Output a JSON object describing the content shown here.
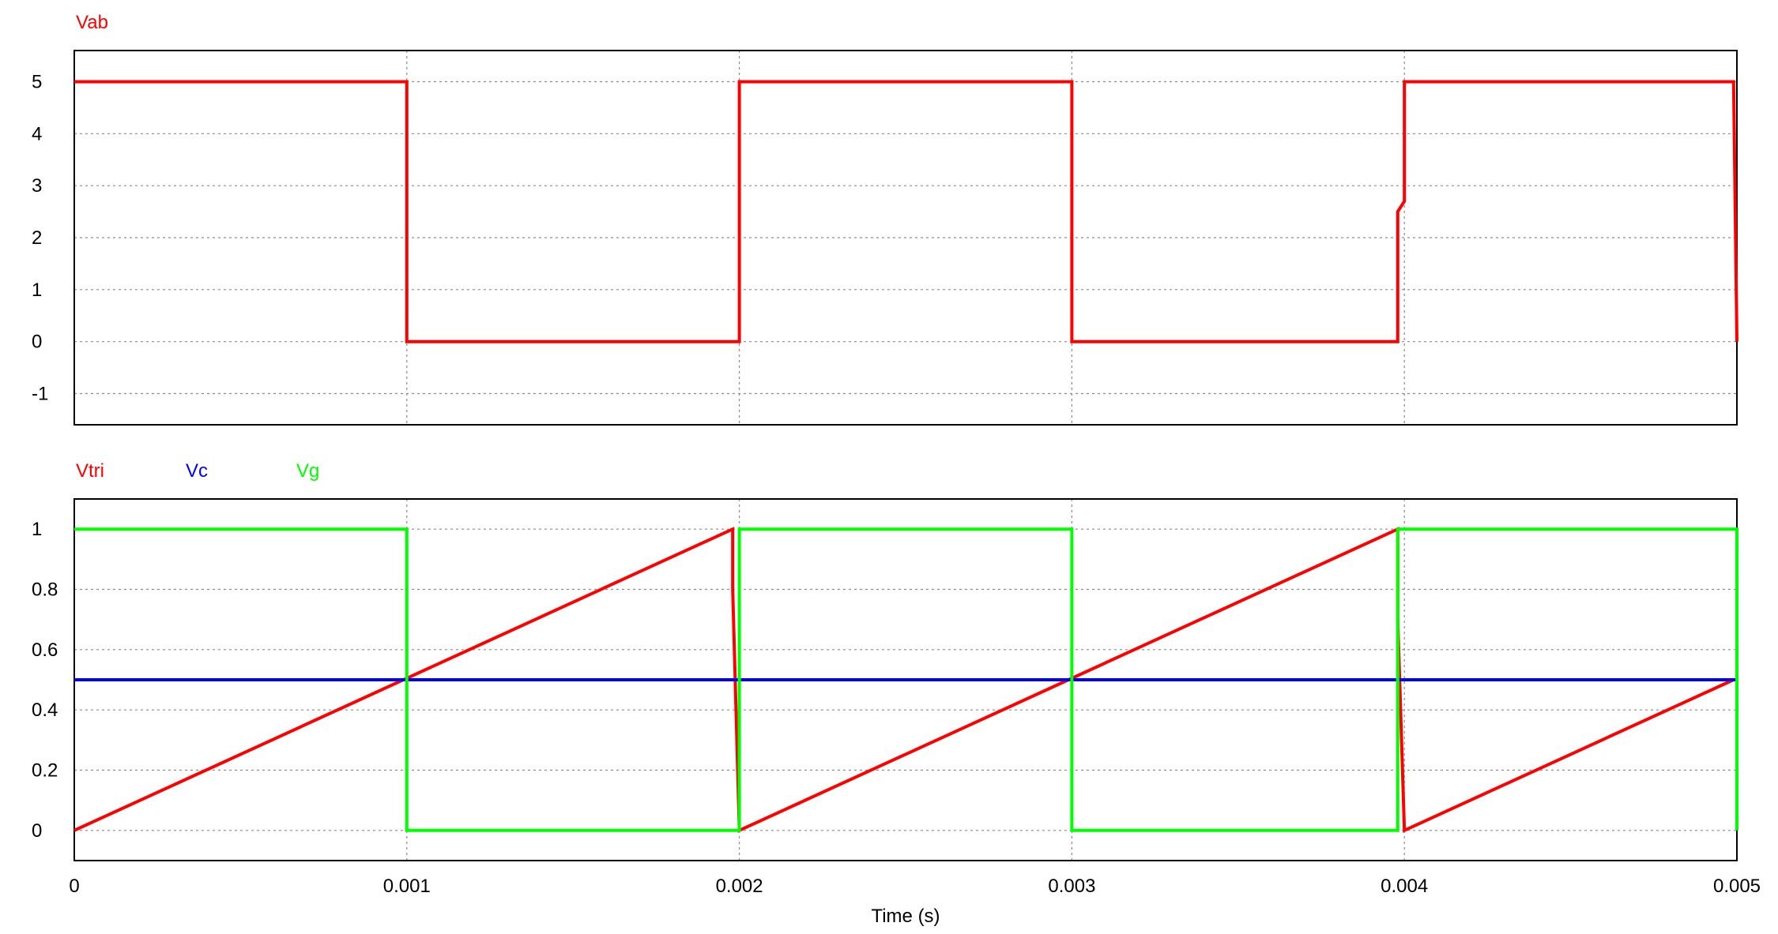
{
  "chart_data": [
    {
      "type": "line",
      "legend": [
        "Vab"
      ],
      "xlim": [
        0,
        0.005
      ],
      "ylim": [
        -1.6,
        5.6
      ],
      "yticks": [
        5,
        4,
        3,
        2,
        1,
        0,
        -1
      ],
      "ytick_labels": [
        "5",
        "4",
        "3",
        "2",
        "1",
        "0",
        "-1"
      ],
      "xticks": [
        0,
        0.001,
        0.002,
        0.003,
        0.004,
        0.005
      ],
      "grid": true,
      "series": [
        {
          "name": "Vab",
          "color": "#ff0000",
          "x": [
            0,
            0.001,
            0.001,
            0.002,
            0.002,
            0.003,
            0.003,
            0.00398,
            0.00398,
            0.004,
            0.004,
            0.00499,
            0.005
          ],
          "y": [
            5,
            5,
            0,
            0,
            5,
            5,
            0,
            0,
            2.5,
            2.7,
            5,
            5,
            0
          ]
        }
      ]
    },
    {
      "type": "line",
      "legend": [
        "Vtri",
        "Vc",
        "Vg"
      ],
      "xlim": [
        0,
        0.005
      ],
      "ylim": [
        -0.1,
        1.1
      ],
      "yticks": [
        1,
        0.8,
        0.6,
        0.4,
        0.2,
        0
      ],
      "ytick_labels": [
        "1",
        "0.8",
        "0.6",
        "0.4",
        "0.2",
        "0"
      ],
      "xticks": [
        0,
        0.001,
        0.002,
        0.003,
        0.004,
        0.005
      ],
      "xtick_labels": [
        "0",
        "0.001",
        "0.002",
        "0.003",
        "0.004",
        "0.005"
      ],
      "xlabel": "Time (s)",
      "grid": true,
      "series": [
        {
          "name": "Vtri",
          "color": "#ff0000",
          "x": [
            0,
            0.00198,
            0.00198,
            0.002,
            0.00299,
            0.00398,
            0.00398,
            0.004,
            0.00499
          ],
          "y": [
            0,
            1,
            0.8,
            0,
            0.5,
            1,
            0.7,
            0,
            0.5
          ]
        },
        {
          "name": "Vc",
          "color": "#0000ff",
          "x": [
            0,
            0.005
          ],
          "y": [
            0.5,
            0.5
          ]
        },
        {
          "name": "Vg",
          "color": "#00ff00",
          "x": [
            0,
            0.001,
            0.001,
            0.002,
            0.002,
            0.003,
            0.003,
            0.00398,
            0.00398,
            0.005,
            0.005
          ],
          "y": [
            1,
            1,
            0,
            0,
            1,
            1,
            0,
            0,
            1,
            1,
            0
          ]
        }
      ]
    }
  ]
}
